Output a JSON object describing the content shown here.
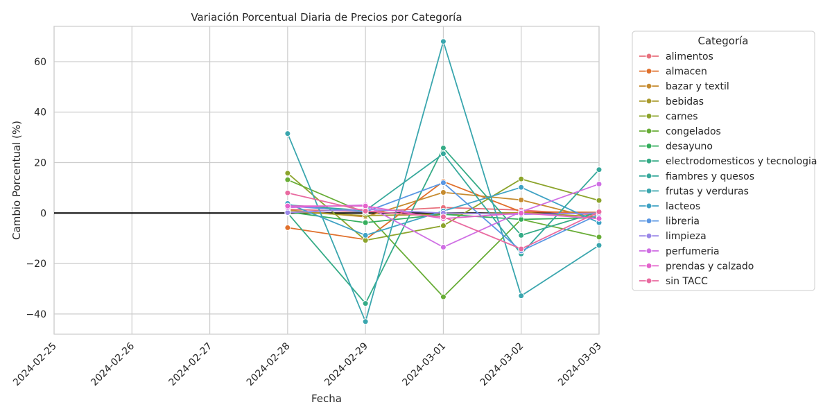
{
  "chart_data": {
    "type": "line",
    "title": "Variación Porcentual Diaria de Precios por Categoría",
    "xlabel": "Fecha",
    "ylabel": "Cambio Porcentual (%)",
    "x_ticks": [
      "2024-02-25",
      "2024-02-26",
      "2024-02-27",
      "2024-02-28",
      "2024-02-29",
      "2024-03-01",
      "2024-03-02",
      "2024-03-03"
    ],
    "x": [
      "2024-02-28",
      "2024-02-29",
      "2024-03-01",
      "2024-03-02",
      "2024-03-03"
    ],
    "xlim": [
      "2024-02-25",
      "2024-03-03"
    ],
    "ylim": [
      -48,
      74
    ],
    "y_ticks": [
      -40,
      -20,
      0,
      20,
      40,
      60
    ],
    "grid": true,
    "zero_line": true,
    "legend_title": "Categoría",
    "legend_position": "outside right",
    "series": [
      {
        "name": "alimentos",
        "color": "#e8707d",
        "values": [
          1.5,
          0.5,
          2.2,
          1.2,
          -0.8
        ]
      },
      {
        "name": "almacen",
        "color": "#e0702c",
        "values": [
          -5.8,
          -10.5,
          12.5,
          0.5,
          0.3
        ]
      },
      {
        "name": "bazar y textil",
        "color": "#c68b30",
        "values": [
          1.2,
          -1.5,
          8.2,
          5.2,
          -2.5
        ]
      },
      {
        "name": "bebidas",
        "color": "#a99a2c",
        "values": [
          0.5,
          -1.0,
          -0.5,
          0.2,
          -1.5
        ]
      },
      {
        "name": "carnes",
        "color": "#8ca42c",
        "values": [
          15.8,
          -10.8,
          -5.0,
          13.5,
          5.0
        ]
      },
      {
        "name": "congelados",
        "color": "#68ad37",
        "values": [
          13.2,
          0.0,
          -33.2,
          -2.5,
          -9.5
        ]
      },
      {
        "name": "desayuno",
        "color": "#34ae5c",
        "values": [
          0.5,
          -3.8,
          -0.5,
          -2.5,
          -1.8
        ]
      },
      {
        "name": "electrodomesticos y tecnologia",
        "color": "#35ab86",
        "values": [
          0.0,
          -35.8,
          25.8,
          -8.8,
          0.5
        ]
      },
      {
        "name": "fiambres y quesos",
        "color": "#37a99c",
        "values": [
          3.2,
          1.0,
          23.5,
          -16.2,
          17.2
        ]
      },
      {
        "name": "frutas y verduras",
        "color": "#3aa6ae",
        "values": [
          31.5,
          -43.0,
          68.0,
          -32.8,
          -12.8
        ]
      },
      {
        "name": "lacteos",
        "color": "#3fa2c4",
        "values": [
          3.8,
          -8.8,
          0.8,
          10.2,
          -3.8
        ]
      },
      {
        "name": "libreria",
        "color": "#5a97e3",
        "values": [
          2.8,
          0.5,
          12.0,
          -15.0,
          -0.5
        ]
      },
      {
        "name": "limpieza",
        "color": "#9a87e8",
        "values": [
          0.2,
          1.5,
          0.0,
          -0.5,
          0.0
        ]
      },
      {
        "name": "perfumeria",
        "color": "#cf6fe4",
        "values": [
          2.2,
          3.2,
          -13.5,
          0.5,
          11.5
        ]
      },
      {
        "name": "prendas y calzado",
        "color": "#e463cc",
        "values": [
          2.8,
          2.8,
          -2.2,
          0.0,
          -2.2
        ]
      },
      {
        "name": "sin TACC",
        "color": "#e96aa0",
        "values": [
          8.0,
          0.8,
          -1.5,
          -14.2,
          0.5
        ]
      }
    ]
  }
}
